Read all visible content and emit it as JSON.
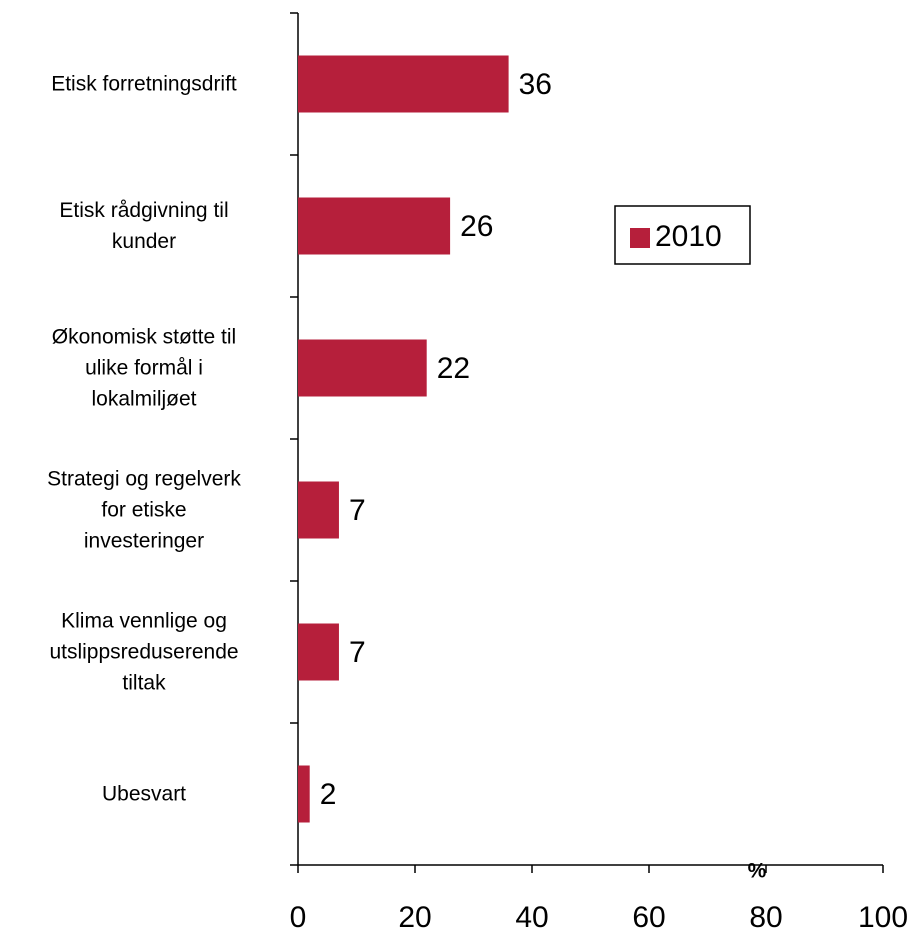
{
  "chart_data": {
    "type": "hbar",
    "categories": [
      "Etisk forretningsdrift",
      "Etisk rådgivning til\nkunder",
      "Økonomisk støtte til\nulike formål i\nlokalmiljøet",
      "Strategi og regelverk\nfor etiske\ninvesteringer",
      "Klima vennlige og\nutslippsreduserende\ntiltak",
      "Ubesvart"
    ],
    "series": [
      {
        "name": "2010",
        "color": "#b61f3b",
        "values": [
          36,
          26,
          22,
          7,
          7,
          2
        ]
      }
    ],
    "xlim": [
      0,
      100
    ],
    "xticks": [
      0,
      20,
      40,
      60,
      80,
      100
    ],
    "x_label": "%",
    "legend": "right",
    "grid": false
  }
}
